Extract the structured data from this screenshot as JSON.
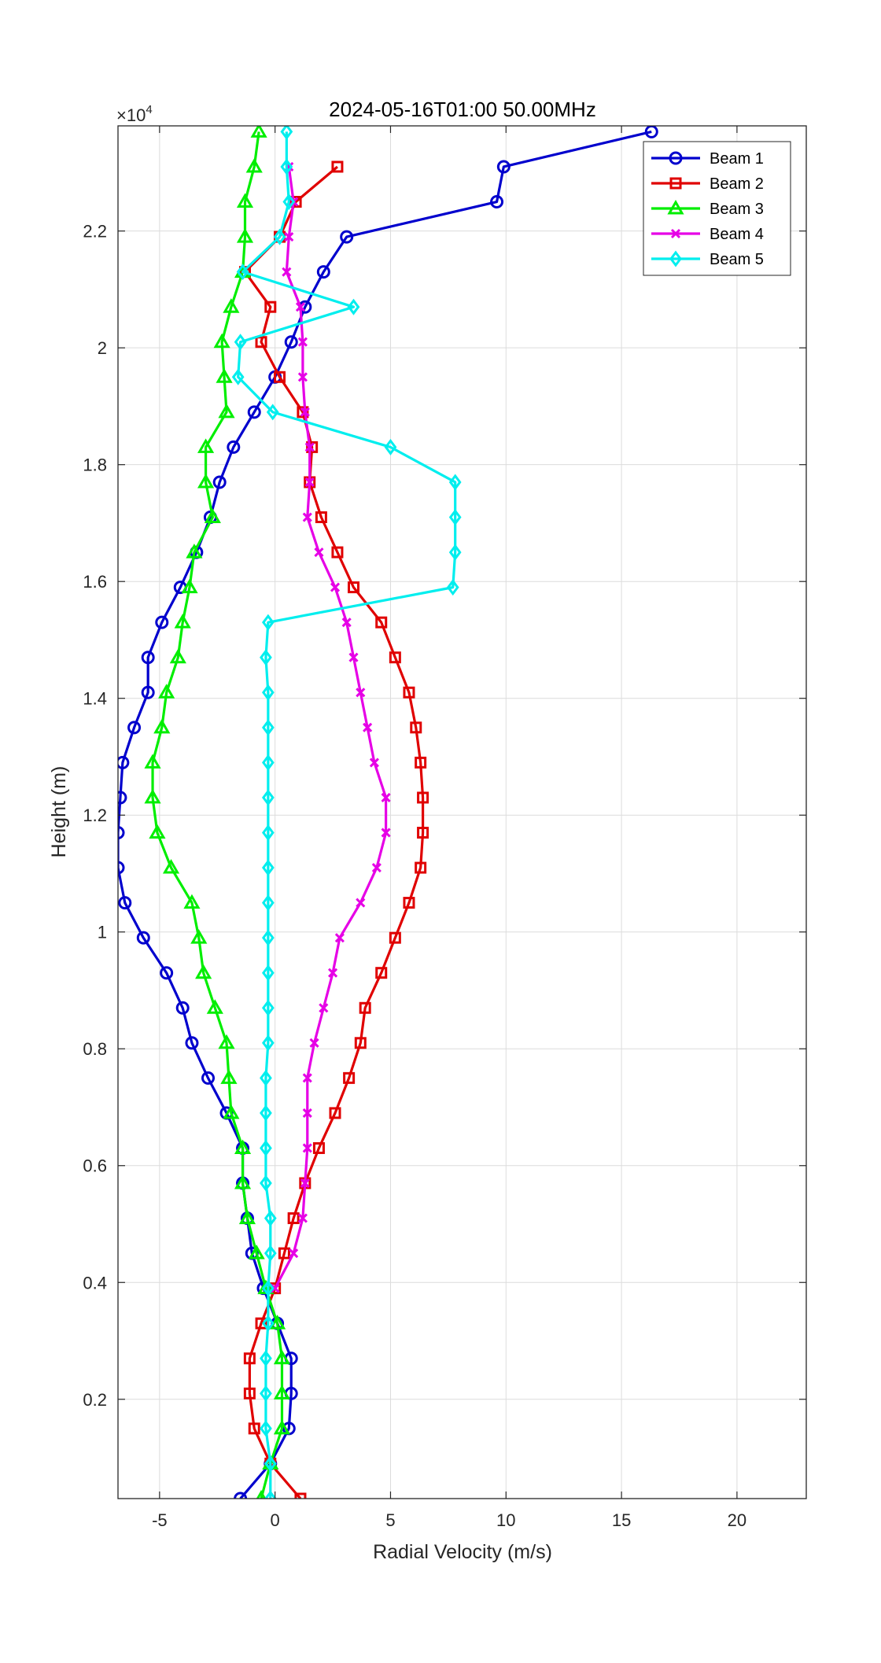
{
  "chart_data": {
    "type": "line",
    "title": "2024-05-16T01:00 50.00MHz",
    "xlabel": "Radial Velocity (m/s)",
    "ylabel": "Height (m)",
    "y_exponent_label": "×10",
    "y_exponent_power": "4",
    "y_scale_factor": 10000,
    "xlim": [
      -6.8,
      23
    ],
    "ylim": [
      300,
      23800
    ],
    "xticks": [
      -5,
      0,
      5,
      10,
      15,
      20
    ],
    "yticks": [
      2000,
      4000,
      6000,
      8000,
      10000,
      12000,
      14000,
      16000,
      18000,
      20000,
      22000
    ],
    "ytick_labels": [
      "0.2",
      "0.4",
      "0.6",
      "0.8",
      "1",
      "1.2",
      "1.4",
      "1.6",
      "1.8",
      "2",
      "2.2"
    ],
    "grid": true,
    "legend_position": "top-right",
    "heights": [
      300,
      900,
      1500,
      2100,
      2700,
      3300,
      3900,
      4500,
      5100,
      5700,
      6300,
      6900,
      7500,
      8100,
      8700,
      9300,
      9900,
      10500,
      11100,
      11700,
      12300,
      12900,
      13500,
      14100,
      14700,
      15300,
      15900,
      16500,
      17100,
      17700,
      18300,
      18900,
      19500,
      20100,
      20700,
      21300,
      21900,
      22500,
      23100,
      23700
    ],
    "series": [
      {
        "name": "Beam 1",
        "color": "#0000cd",
        "marker": "circle",
        "values": [
          -1.5,
          -0.2,
          0.6,
          0.7,
          0.7,
          0.1,
          -0.5,
          -1.0,
          -1.2,
          -1.4,
          -1.4,
          -2.1,
          -2.9,
          -3.6,
          -4.0,
          -4.7,
          -5.7,
          -6.5,
          -6.8,
          -6.8,
          -6.7,
          -6.6,
          -6.1,
          -5.5,
          -5.5,
          -4.9,
          -4.1,
          -3.4,
          -2.8,
          -2.4,
          -1.8,
          -0.9,
          0.0,
          0.7,
          1.3,
          2.1,
          3.1,
          9.6,
          9.9,
          16.3
        ]
      },
      {
        "name": "Beam 2",
        "color": "#e00000",
        "marker": "square",
        "values": [
          1.1,
          -0.2,
          -0.9,
          -1.1,
          -1.1,
          -0.6,
          0.0,
          0.4,
          0.8,
          1.3,
          1.9,
          2.6,
          3.2,
          3.7,
          3.9,
          4.6,
          5.2,
          5.8,
          6.3,
          6.4,
          6.4,
          6.3,
          6.1,
          5.8,
          5.2,
          4.6,
          3.4,
          2.7,
          2.0,
          1.5,
          1.6,
          1.2,
          0.2,
          -0.6,
          -0.2,
          -1.3,
          0.2,
          0.9,
          2.7,
          null
        ]
      },
      {
        "name": "Beam 3",
        "color": "#00ee00",
        "marker": "triangle",
        "values": [
          -0.6,
          -0.2,
          0.3,
          0.3,
          0.3,
          0.1,
          -0.4,
          -0.8,
          -1.2,
          -1.4,
          -1.4,
          -1.9,
          -2.0,
          -2.1,
          -2.6,
          -3.1,
          -3.3,
          -3.6,
          -4.5,
          -5.1,
          -5.3,
          -5.3,
          -4.9,
          -4.7,
          -4.2,
          -4.0,
          -3.7,
          -3.5,
          -2.7,
          -3.0,
          -3.0,
          -2.1,
          -2.2,
          -2.3,
          -1.9,
          -1.4,
          -1.3,
          -1.3,
          -0.9,
          -0.7
        ]
      },
      {
        "name": "Beam 4",
        "color": "#e600e6",
        "marker": "x",
        "values": [
          null,
          null,
          null,
          null,
          null,
          null,
          0.0,
          0.8,
          1.2,
          1.3,
          1.4,
          1.4,
          1.4,
          1.7,
          2.1,
          2.5,
          2.8,
          3.7,
          4.4,
          4.8,
          4.8,
          4.3,
          4.0,
          3.7,
          3.4,
          3.1,
          2.6,
          1.9,
          1.4,
          1.5,
          1.5,
          1.3,
          1.2,
          1.2,
          1.1,
          0.5,
          0.6,
          0.8,
          0.6,
          null
        ]
      },
      {
        "name": "Beam 5",
        "color": "#00eeee",
        "marker": "diamond",
        "values": [
          -0.2,
          -0.2,
          -0.4,
          -0.4,
          -0.4,
          -0.3,
          -0.3,
          -0.2,
          -0.2,
          -0.4,
          -0.4,
          -0.4,
          -0.4,
          -0.3,
          -0.3,
          -0.3,
          -0.3,
          -0.3,
          -0.3,
          -0.3,
          -0.3,
          -0.3,
          -0.3,
          -0.3,
          -0.4,
          -0.3,
          7.7,
          7.8,
          7.8,
          7.8,
          5.0,
          -0.1,
          -1.6,
          -1.5,
          3.4,
          -1.4,
          0.2,
          0.6,
          0.5,
          0.5
        ]
      }
    ]
  }
}
